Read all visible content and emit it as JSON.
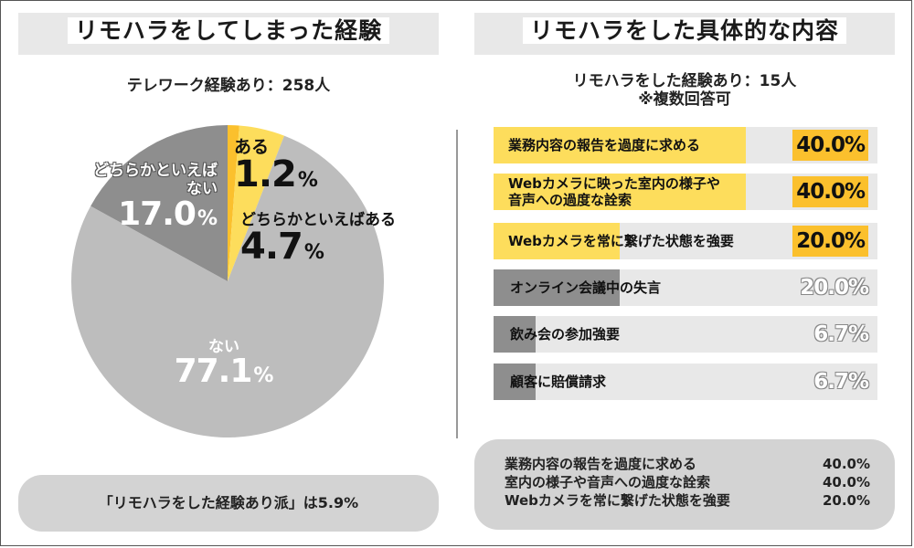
{
  "left": {
    "title": "リモハラをしてしまった経験",
    "count": "テレワーク経験あり：258人",
    "pill": "「リモハラをした経験あり派」は5.9%"
  },
  "right": {
    "title": "リモハラをした具体的な内容",
    "count_line1": "リモハラをした経験あり：15人",
    "count_line2": "※複数回答可",
    "summary": [
      {
        "label": "業務内容の報告を過度に求める",
        "value": "40.0%"
      },
      {
        "label": "室内の様子や音声への過度な詮索",
        "value": "40.0%"
      },
      {
        "label": "Webカメラを常に繋げた状態を強要",
        "value": "20.0%"
      }
    ]
  },
  "colors": {
    "yellow": "#fbc02d",
    "light_yellow": "#fddd5c",
    "dark_gray": "#8e8e8e",
    "light_gray": "#bdbdbd"
  },
  "chart_data": [
    {
      "type": "pie",
      "title": "リモハラをしてしまった経験",
      "slices": [
        {
          "label": "ある",
          "value": 1.2,
          "value_text": "1.2",
          "unit": "%",
          "color": "#fbc02d"
        },
        {
          "label": "どちらかといえばある",
          "value": 4.7,
          "value_text": "4.7",
          "unit": "%",
          "color": "#fddd5c"
        },
        {
          "label": "ない",
          "value": 77.1,
          "value_text": "77.1",
          "unit": "%",
          "color": "#bdbdbd"
        },
        {
          "label_line1": "どちらかといえば",
          "label_line2": "ない",
          "value": 17.0,
          "value_text": "17.0",
          "unit": "%",
          "color": "#8e8e8e"
        }
      ]
    },
    {
      "type": "bar",
      "title": "リモハラをした具体的な内容",
      "orientation": "horizontal",
      "xlim": [
        0,
        50
      ],
      "bars": [
        {
          "label": "業務内容の報告を過度に求める",
          "value": 40.0,
          "value_text": "40.0%",
          "highlight": true
        },
        {
          "label_line1": "Webカメラに映った室内の様子や",
          "label_line2": "音声への過度な詮索",
          "value": 40.0,
          "value_text": "40.0%",
          "highlight": true
        },
        {
          "label": "Webカメラを常に繋げた状態を強要",
          "value": 20.0,
          "value_text": "20.0%",
          "highlight": true
        },
        {
          "label": "オンライン会議中の失言",
          "value": 20.0,
          "value_text": "20.0%",
          "highlight": false
        },
        {
          "label": "飲み会の参加強要",
          "value": 6.7,
          "value_text": "6.7%",
          "highlight": false
        },
        {
          "label": "顧客に賠償請求",
          "value": 6.7,
          "value_text": "6.7%",
          "highlight": false
        }
      ]
    }
  ]
}
